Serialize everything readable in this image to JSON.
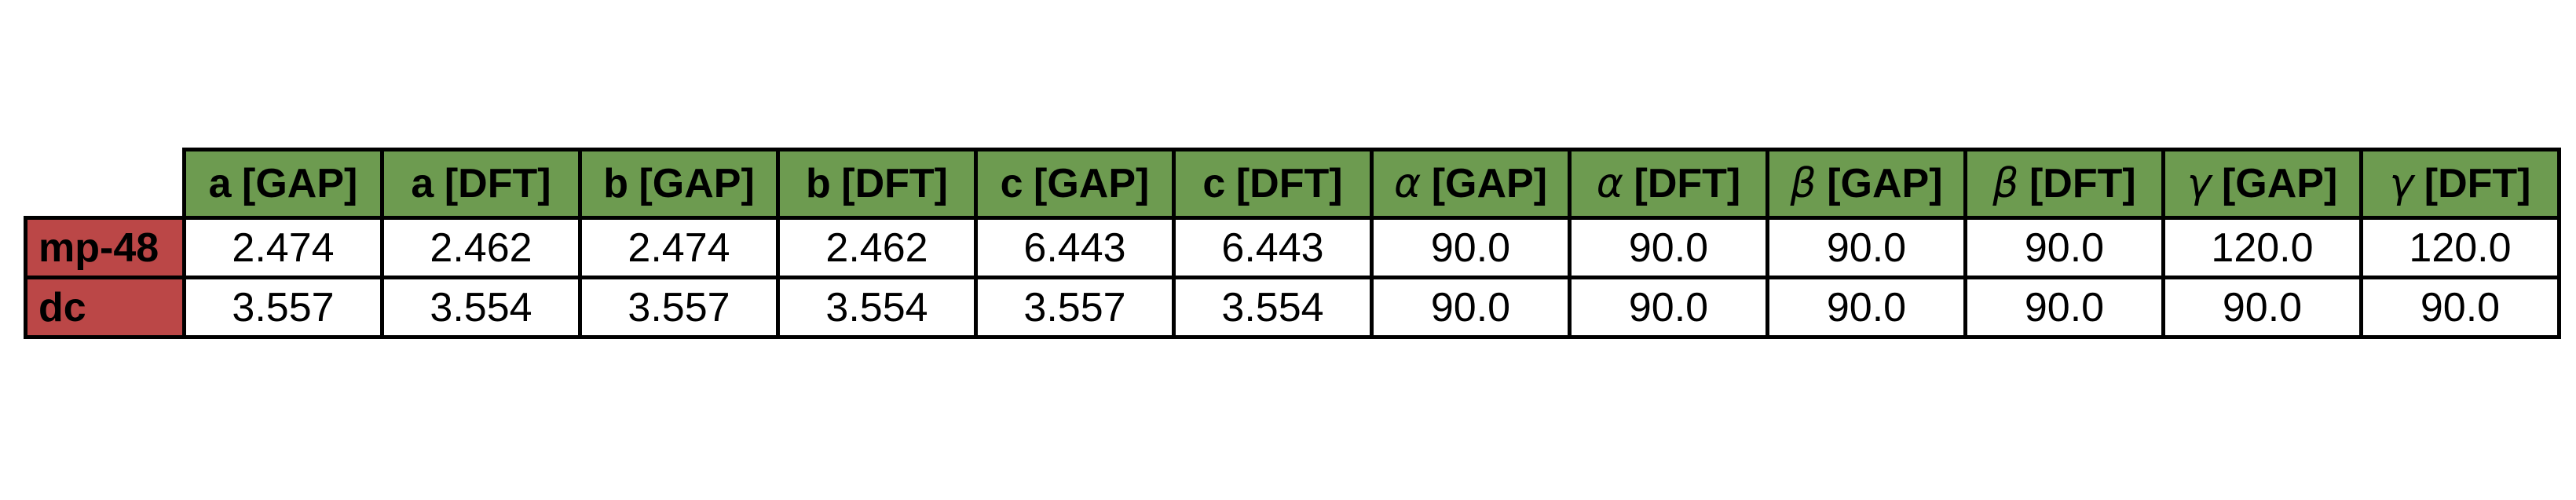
{
  "table": {
    "colors": {
      "header_bg": "#6D9B50",
      "row_label_bg": "#BB4747",
      "border": "#000000",
      "background": "#FFFFFF",
      "text": "#000000"
    },
    "columns": [
      {
        "symbol": "a",
        "method": "[GAP]"
      },
      {
        "symbol": "a",
        "method": "[DFT]"
      },
      {
        "symbol": "b",
        "method": "[GAP]"
      },
      {
        "symbol": "b",
        "method": "[DFT]"
      },
      {
        "symbol": "c",
        "method": "[GAP]"
      },
      {
        "symbol": "c",
        "method": "[DFT]"
      },
      {
        "symbol": "α",
        "method": "[GAP]"
      },
      {
        "symbol": "α",
        "method": "[DFT]"
      },
      {
        "symbol": "β",
        "method": "[GAP]"
      },
      {
        "symbol": "β",
        "method": "[DFT]"
      },
      {
        "symbol": "γ",
        "method": "[GAP]"
      },
      {
        "symbol": "γ",
        "method": "[DFT]"
      }
    ],
    "rows": [
      {
        "label": "mp-48",
        "values": [
          "2.474",
          "2.462",
          "2.474",
          "2.462",
          "6.443",
          "6.443",
          "90.0",
          "90.0",
          "90.0",
          "90.0",
          "120.0",
          "120.0"
        ]
      },
      {
        "label": "dc",
        "values": [
          "3.557",
          "3.554",
          "3.557",
          "3.554",
          "3.557",
          "3.554",
          "90.0",
          "90.0",
          "90.0",
          "90.0",
          "90.0",
          "90.0"
        ]
      }
    ]
  },
  "chart_data": {
    "type": "table",
    "title": "",
    "columns": [
      "a [GAP]",
      "a [DFT]",
      "b [GAP]",
      "b [DFT]",
      "c [GAP]",
      "c [DFT]",
      "α [GAP]",
      "α [DFT]",
      "β [GAP]",
      "β [DFT]",
      "γ [GAP]",
      "γ [DFT]"
    ],
    "row_labels": [
      "mp-48",
      "dc"
    ],
    "values": [
      [
        2.474,
        2.462,
        2.474,
        2.462,
        6.443,
        6.443,
        90.0,
        90.0,
        90.0,
        90.0,
        120.0,
        120.0
      ],
      [
        3.557,
        3.554,
        3.557,
        3.554,
        3.557,
        3.554,
        90.0,
        90.0,
        90.0,
        90.0,
        90.0,
        90.0
      ]
    ]
  }
}
